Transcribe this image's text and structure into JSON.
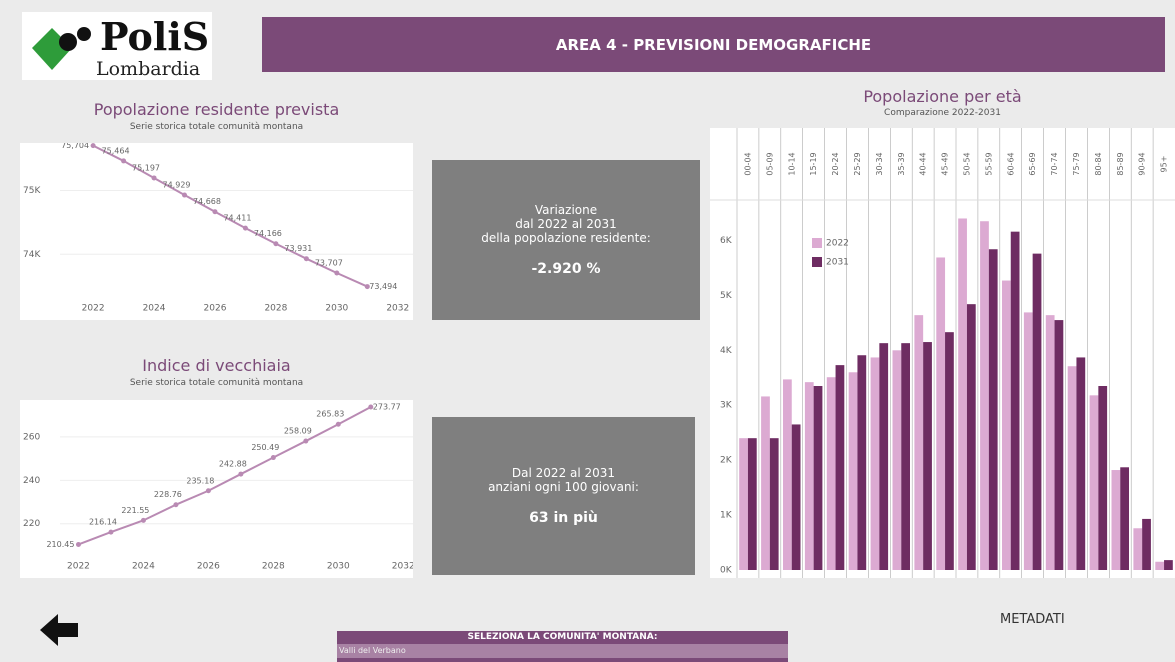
{
  "header": {
    "logo_title": "PoliS",
    "logo_subtitle": "Lombardia",
    "title": "AREA 4 - PREVISIONI DEMOGRAFICHE"
  },
  "chart_data": [
    {
      "type": "line",
      "title": "Popolazione residente prevista",
      "subtitle": "Serie storica totale comunità montana",
      "x": [
        2022,
        2023,
        2024,
        2025,
        2026,
        2027,
        2028,
        2029,
        2030,
        2031
      ],
      "values": [
        75704,
        75464,
        75197,
        74929,
        74668,
        74411,
        74166,
        73931,
        73707,
        73494
      ],
      "value_labels": [
        "75,704",
        "75,464",
        "75,197",
        "74,929",
        "74,668",
        "74,411",
        "74,166",
        "73,931",
        "73,707",
        "73,494"
      ],
      "color": "#b98ab3",
      "xlim": [
        2019.6,
        2032.5
      ],
      "ylim": [
        72970,
        75745
      ],
      "xticks": [
        2022,
        2024,
        2026,
        2028,
        2030,
        2032
      ],
      "yticks": [
        {
          "value": 74000,
          "label": "74K"
        },
        {
          "value": 75000,
          "label": "75K"
        }
      ],
      "grid": true
    },
    {
      "type": "line",
      "title": "Indice di vecchiaia",
      "subtitle": "Serie storica totale comunità montana",
      "x": [
        2022,
        2023,
        2024,
        2025,
        2026,
        2027,
        2028,
        2029,
        2030,
        2031
      ],
      "values": [
        210.45,
        216.14,
        221.55,
        228.76,
        235.18,
        242.88,
        250.49,
        258.09,
        265.83,
        273.77
      ],
      "color": "#b98ab3",
      "xlim": [
        2020.2,
        2032.3
      ],
      "ylim": [
        195,
        277
      ],
      "xticks": [
        2022,
        2024,
        2026,
        2028,
        2030,
        2032
      ],
      "yticks": [
        220,
        240,
        260
      ],
      "grid": true
    },
    {
      "type": "bar",
      "title": "Popolazione per età",
      "subtitle": "Comparazione 2022-2031",
      "categories": [
        "00-04",
        "05-09",
        "10-14",
        "15-19",
        "20-24",
        "25-29",
        "30-34",
        "35-39",
        "40-44",
        "45-49",
        "50-54",
        "55-59",
        "60-64",
        "65-69",
        "70-74",
        "75-79",
        "80-84",
        "85-89",
        "90-94",
        "95+"
      ],
      "series": [
        {
          "name": "2022",
          "color": "#dcaad2",
          "values": [
            2400,
            3160,
            3470,
            3420,
            3510,
            3600,
            3870,
            4000,
            4640,
            5690,
            6400,
            6350,
            5270,
            4690,
            4640,
            3710,
            3180,
            1820,
            760,
            150
          ]
        },
        {
          "name": "2031",
          "color": "#6e2c62",
          "values": [
            2400,
            2400,
            2650,
            3350,
            3730,
            3910,
            4130,
            4130,
            4150,
            4330,
            4840,
            5840,
            6160,
            5760,
            4550,
            3870,
            3350,
            1870,
            930,
            180
          ]
        }
      ],
      "ylim": [
        0,
        6700
      ],
      "yticks": [
        {
          "value": 0,
          "label": "0K"
        },
        {
          "value": 1000,
          "label": "1K"
        },
        {
          "value": 2000,
          "label": "2K"
        },
        {
          "value": 3000,
          "label": "3K"
        },
        {
          "value": 4000,
          "label": "4K"
        },
        {
          "value": 5000,
          "label": "5K"
        },
        {
          "value": 6000,
          "label": "6K"
        }
      ],
      "legend": "top-left",
      "grid": false
    }
  ],
  "cards": [
    {
      "lines": [
        "Variazione",
        "dal 2022 al 2031",
        "della popolazione residente:"
      ],
      "value": "-2.920 %"
    },
    {
      "lines": [
        "Dal 2022 al 2031",
        "anziani ogni 100 giovani:"
      ],
      "value": "63 in più"
    }
  ],
  "footer": {
    "selector_label": "SELEZIONA LA COMUNITA' MONTANA:",
    "selector_value": "Valli del Verbano",
    "metadata": "METADATI"
  }
}
